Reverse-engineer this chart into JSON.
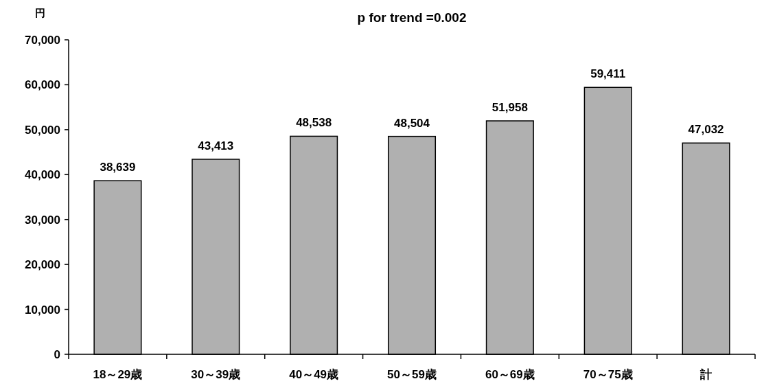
{
  "chart_data": {
    "type": "bar",
    "title": "p for trend =0.002",
    "ylabel": "円",
    "categories": [
      "18～29歳",
      "30～39歳",
      "40～49歳",
      "50～59歳",
      "60～69歳",
      "70～75歳",
      "計"
    ],
    "values": [
      38639,
      43413,
      48538,
      48504,
      51958,
      59411,
      47032
    ],
    "value_labels": [
      "38,639",
      "43,413",
      "48,538",
      "48,504",
      "51,958",
      "59,411",
      "47,032"
    ],
    "color": "#b0b0b0",
    "ylim": [
      0,
      70000
    ],
    "yticks": [
      0,
      {
        "value": 10000,
        "label": "10,000"
      },
      {
        "value": 20000,
        "label": "20,000"
      },
      {
        "value": 30000,
        "label": "30,000"
      },
      {
        "value": 40000,
        "label": "40,000"
      },
      {
        "value": 50000,
        "label": "50,000"
      },
      {
        "value": 60000,
        "label": "60,000"
      },
      {
        "value": 70000,
        "label": "70,000"
      }
    ],
    "grid": false
  }
}
